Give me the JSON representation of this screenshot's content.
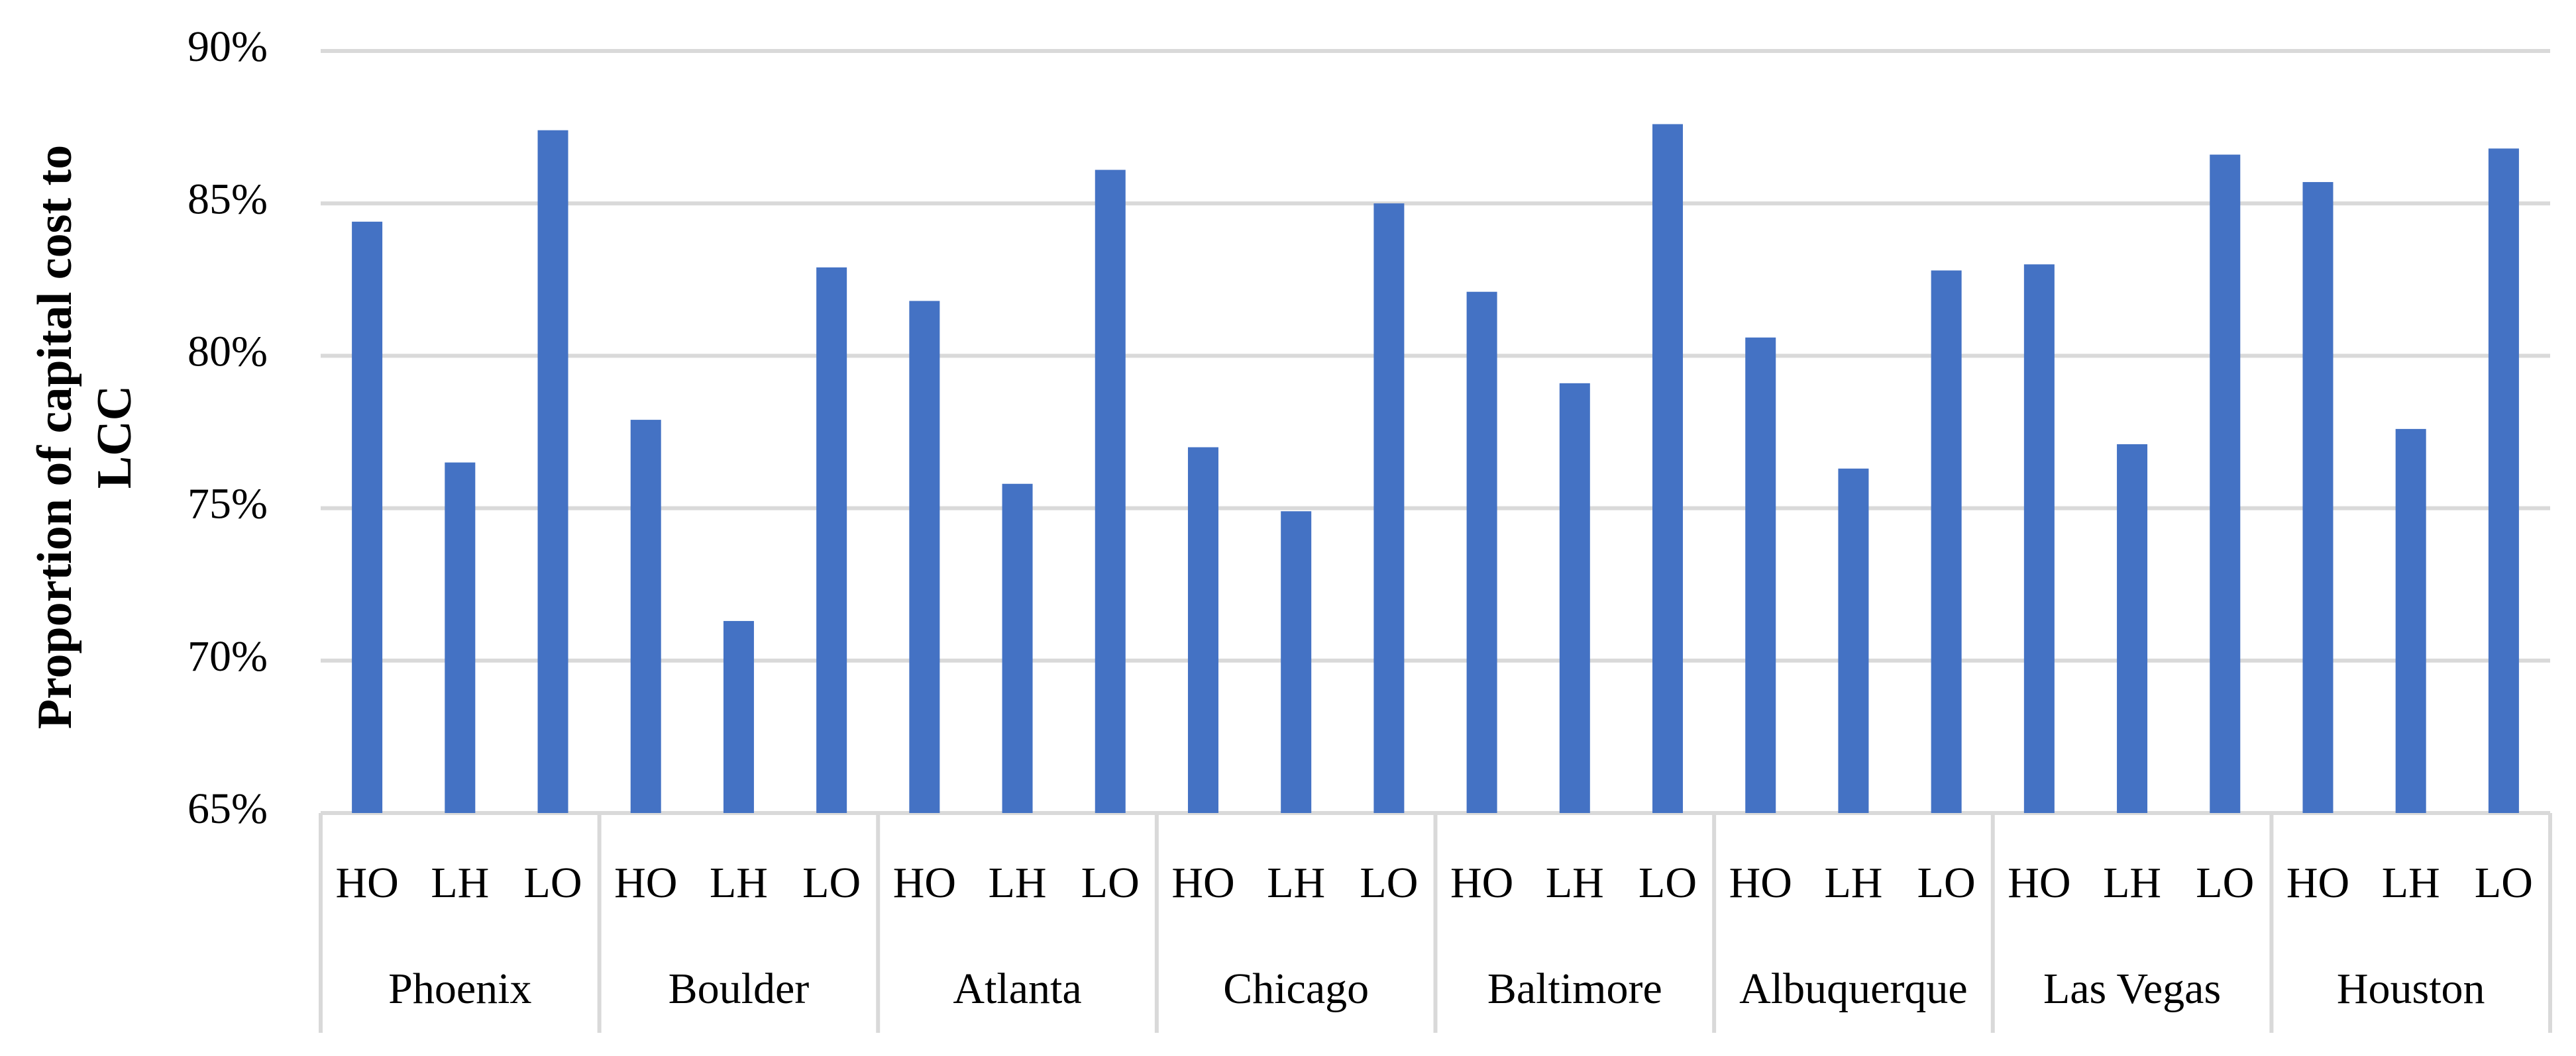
{
  "chart_data": {
    "type": "bar",
    "ylabel": [
      "Proportion  of capital cost to",
      "LCC"
    ],
    "groups": [
      "Phoenix",
      "Boulder",
      "Atlanta",
      "Chicago",
      "Baltimore",
      "Albuquerque",
      "Las Vegas",
      "Houston"
    ],
    "categories": [
      "HO",
      "LH",
      "LO",
      "HO",
      "LH",
      "LO",
      "HO",
      "LH",
      "LO",
      "HO",
      "LH",
      "LO",
      "HO",
      "LH",
      "LO",
      "HO",
      "LH",
      "LO",
      "HO",
      "LH",
      "LO",
      "HO",
      "LH",
      "LO"
    ],
    "values": [
      84.4,
      76.5,
      87.4,
      77.9,
      71.3,
      82.9,
      81.8,
      75.8,
      86.1,
      77.0,
      74.9,
      85.0,
      82.1,
      79.1,
      87.6,
      80.6,
      76.3,
      82.8,
      83.0,
      77.1,
      86.6,
      85.7,
      77.6,
      86.8
    ],
    "color": "#4472c4",
    "ylim": [
      65,
      90
    ],
    "yticks": [
      {
        "value": 65,
        "label": "65%"
      },
      {
        "value": 70,
        "label": "70%"
      },
      {
        "value": 75,
        "label": "75%"
      },
      {
        "value": 80,
        "label": "80%"
      },
      {
        "value": 85,
        "label": "85%"
      },
      {
        "value": 90,
        "label": "90%"
      }
    ],
    "grid": true
  }
}
